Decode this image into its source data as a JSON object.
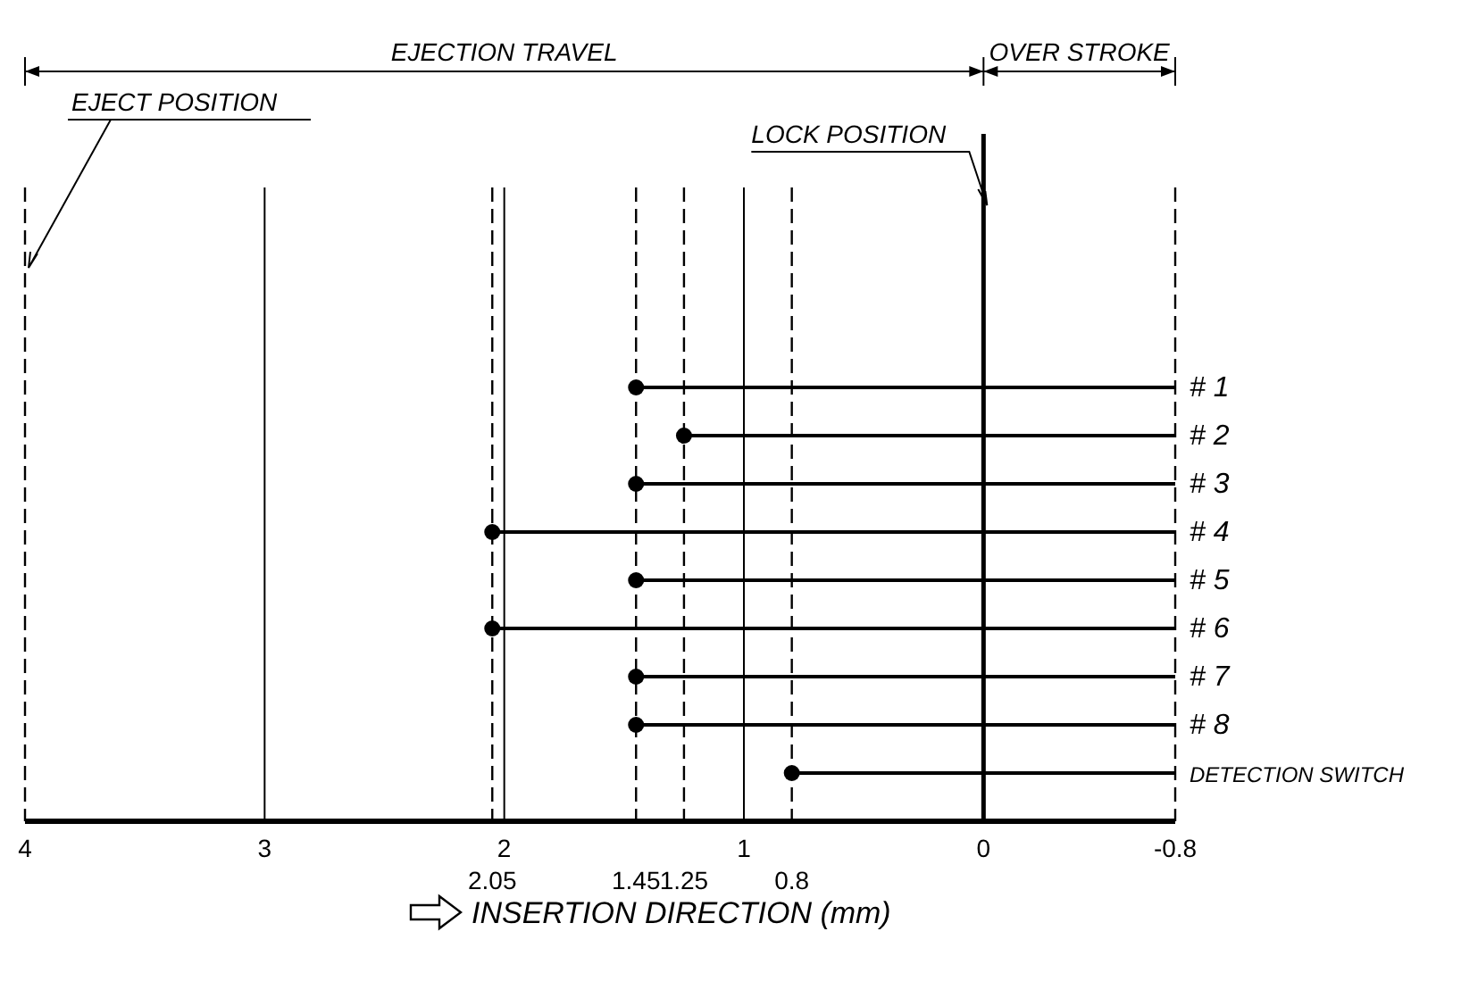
{
  "chart_data": {
    "type": "bar",
    "orientation": "horizontal",
    "xlabel": "INSERTION DIRECTION (mm)",
    "categories": [
      "# 1",
      "# 2",
      "# 3",
      "# 4",
      "# 5",
      "# 6",
      "# 7",
      "# 8",
      "DETECTION SWITCH"
    ],
    "series": [
      {
        "color": "#000000",
        "base": [
          -0.8,
          -0.8,
          -0.8,
          -0.8,
          -0.8,
          -0.8,
          -0.8,
          -0.8,
          -0.8
        ],
        "values": [
          2.25,
          2.05,
          2.25,
          2.85,
          2.25,
          2.85,
          2.25,
          2.25,
          1.6
        ]
      },
      {
        "type": "scatter",
        "color": "#000000",
        "marker": "circle",
        "values": [
          1.45,
          1.25,
          1.45,
          2.05,
          1.45,
          2.05,
          1.45,
          1.45,
          0.8
        ]
      }
    ],
    "xlim": [
      4,
      -0.8
    ],
    "xticks": [
      4,
      3,
      2,
      1,
      0,
      -0.8
    ],
    "grid": "x",
    "ref_lines": [
      {
        "axis": "x",
        "value": 4,
        "label": "EJECT POSITION",
        "line_style": "dashed"
      },
      {
        "axis": "x",
        "value": 0,
        "label": "LOCK POSITION",
        "line_style": "solid"
      },
      {
        "axis": "x",
        "value": -0.8,
        "label": null,
        "line_style": "dashed"
      },
      {
        "axis": "x",
        "value": 2.05,
        "label": "2.05",
        "line_style": "dashed"
      },
      {
        "axis": "x",
        "value": 1.45,
        "label": "1.45",
        "line_style": "dashed"
      },
      {
        "axis": "x",
        "value": 1.25,
        "label": "1.25",
        "line_style": "dashed"
      },
      {
        "axis": "x",
        "value": 0.8,
        "label": "0.8",
        "line_style": "dashed"
      }
    ],
    "annotations": [
      "EJECTION TRAVEL",
      "OVER STROKE"
    ]
  }
}
